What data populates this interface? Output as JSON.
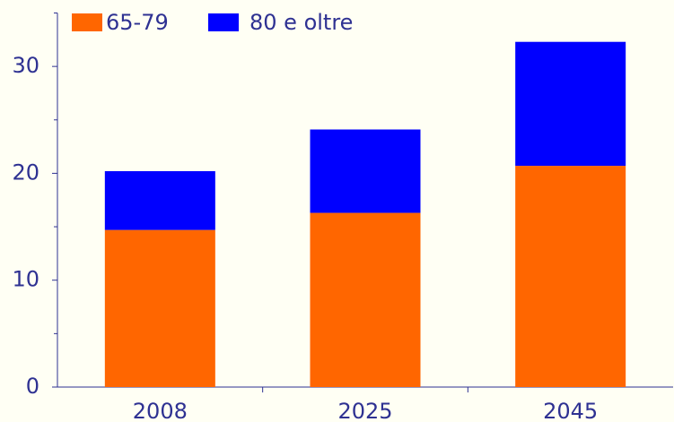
{
  "chart_data": {
    "type": "stacked_bar",
    "categories": [
      "2008",
      "2025",
      "2045"
    ],
    "series": [
      {
        "name": "65-79",
        "color": "#ff6600",
        "values": [
          14.7,
          16.3,
          20.7
        ]
      },
      {
        "name": "80 e oltre",
        "color": "#0000ff",
        "values": [
          5.5,
          7.8,
          11.6
        ]
      }
    ],
    "ylim": [
      0,
      35
    ],
    "yticks": [
      0,
      10,
      20,
      30
    ],
    "minor_yticks": [
      5,
      15,
      25,
      35
    ],
    "legend": "top-left",
    "grid": false
  }
}
